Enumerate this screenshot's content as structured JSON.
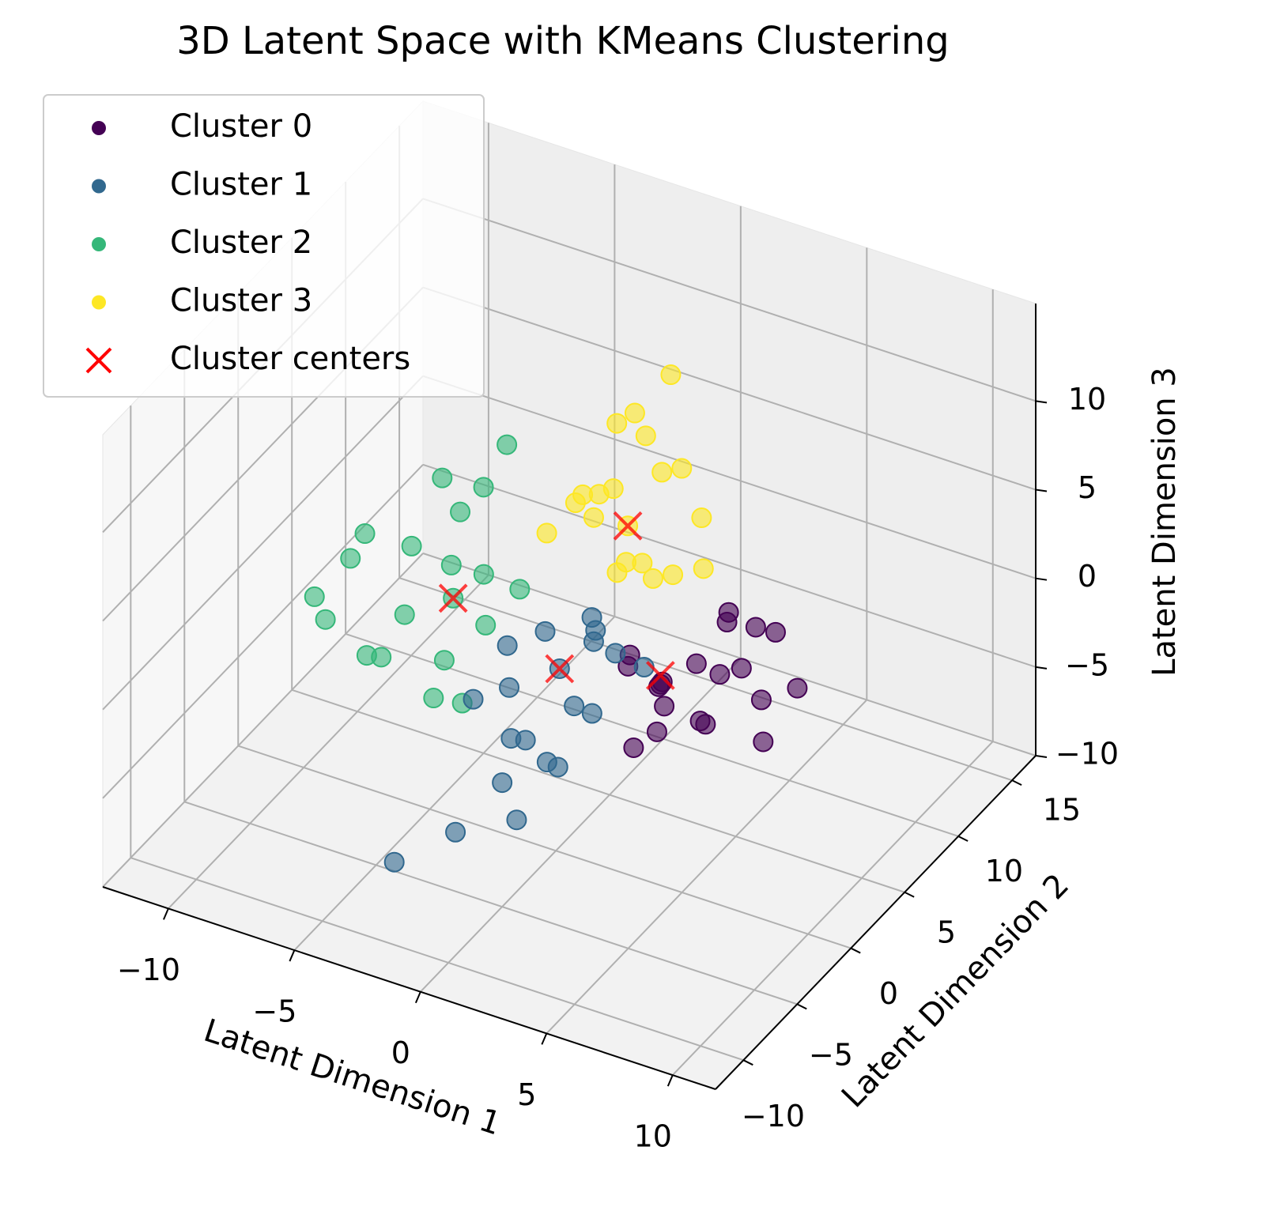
{
  "chart_data": {
    "type": "scatter3d",
    "title": "3D Latent Space with KMeans Clustering",
    "xlabel": "Latent Dimension 1",
    "ylabel": "Latent Dimension 2",
    "zlabel": "Latent Dimension 3",
    "xlim": [
      -12.6,
      11.7
    ],
    "ylim": [
      -12.6,
      17.2
    ],
    "zlim": [
      -10,
      15.5
    ],
    "xticks": [
      {
        "value": -10,
        "label": "−10"
      },
      {
        "value": -5,
        "label": "−5"
      },
      0,
      5,
      10
    ],
    "yticks": [
      {
        "value": -10,
        "label": "−10"
      },
      {
        "value": -5,
        "label": "−5"
      },
      0,
      5,
      10,
      15
    ],
    "zticks": [
      {
        "value": -10,
        "label": "−10"
      },
      {
        "value": -5,
        "label": "−5"
      },
      0,
      5,
      10
    ],
    "grid": true,
    "legend": "upper left",
    "series": [
      {
        "name": "Cluster 0",
        "color": "#440154",
        "marker": "o",
        "x": [
          5,
          6,
          7,
          4,
          8,
          6.5,
          5.5,
          9,
          7.5,
          4.5,
          6,
          8.5,
          10,
          5,
          7,
          6,
          3.5,
          9.5,
          7,
          5.5
        ],
        "y": [
          -2,
          -1,
          -3,
          -2.5,
          -1.5,
          0,
          -3.5,
          -2,
          1,
          -1,
          -4,
          0.5,
          -1,
          -4.5,
          -2.5,
          2,
          -1.5,
          -3,
          -0.5,
          -3
        ],
        "z": [
          3,
          4,
          2.5,
          4.5,
          5,
          3,
          1.5,
          4,
          5.5,
          2,
          3.5,
          6,
          4.5,
          1,
          2,
          5,
          3,
          2.5,
          6.5,
          4
        ]
      },
      {
        "name": "Cluster 3",
        "color": "#fde725",
        "marker": "o",
        "x": [
          2,
          1,
          3,
          0,
          2.5,
          4,
          1.5,
          -0.5,
          3.5,
          2,
          1,
          5,
          0.5,
          3,
          2.5,
          -1,
          4.5,
          1.5,
          2,
          3
        ],
        "y": [
          2,
          3,
          1,
          2.5,
          4,
          1.5,
          0,
          3,
          3.5,
          1,
          5,
          2,
          4.5,
          -0.5,
          2.5,
          1.5,
          3,
          0.5,
          6,
          2
        ],
        "z": [
          8,
          9,
          7,
          8.5,
          10,
          6.5,
          9.5,
          7.5,
          11,
          6,
          12,
          7,
          11.5,
          8,
          13,
          6.5,
          9,
          10.5,
          14,
          5.5
        ]
      },
      {
        "name": "Cluster 2",
        "color": "#35b779",
        "marker": "o",
        "x": [
          -4.5,
          -5,
          -6,
          -3.5,
          -7,
          -4,
          -8,
          -5.5,
          -3,
          -6.5,
          -9,
          -4,
          -2.5,
          -7.5,
          -5,
          -10,
          -3.5,
          -6,
          -8.5,
          -4.5
        ],
        "y": [
          1,
          2,
          0,
          1.5,
          3,
          -1,
          1,
          4,
          0.5,
          -1,
          2,
          -2,
          2.5,
          0,
          5,
          1,
          -0.5,
          3.5,
          -1.5,
          6
        ],
        "z": [
          1.5,
          2.5,
          0.5,
          3,
          2,
          -0.5,
          3.5,
          4,
          1,
          -1.5,
          1,
          -2,
          2,
          -2.5,
          5,
          -1,
          -3,
          6,
          0,
          7
        ]
      },
      {
        "name": "Cluster 1",
        "color": "#31688e",
        "marker": "o",
        "x": [
          1,
          0,
          2,
          -1,
          1.5,
          3,
          0.5,
          -0.5,
          2.5,
          1,
          -1.5,
          0,
          2,
          3.5,
          -2,
          1,
          0.5,
          -1,
          2,
          -3
        ],
        "y": [
          -2,
          -1,
          -3,
          -2,
          0,
          -1.5,
          -4,
          -3,
          -2.5,
          1,
          -1,
          -5,
          -4.5,
          0,
          -3,
          -6,
          -2,
          -7,
          -1,
          -8
        ],
        "z": [
          2,
          3,
          1,
          0,
          2.5,
          3.5,
          -1,
          -2,
          0.5,
          3,
          1.5,
          -3,
          -1.5,
          2,
          -0.5,
          -4,
          -3.5,
          -5,
          4,
          -7
        ]
      },
      {
        "name": "Cluster centers",
        "color": "#ff0000",
        "marker": "x",
        "x": [
          5,
          1,
          -4.5,
          2
        ],
        "y": [
          -2,
          -2,
          1,
          2
        ],
        "z": [
          3.5,
          2,
          1.5,
          8
        ]
      }
    ],
    "legend_order": [
      "Cluster 0",
      "Cluster 1",
      "Cluster 2",
      "Cluster 3",
      "Cluster centers"
    ]
  }
}
